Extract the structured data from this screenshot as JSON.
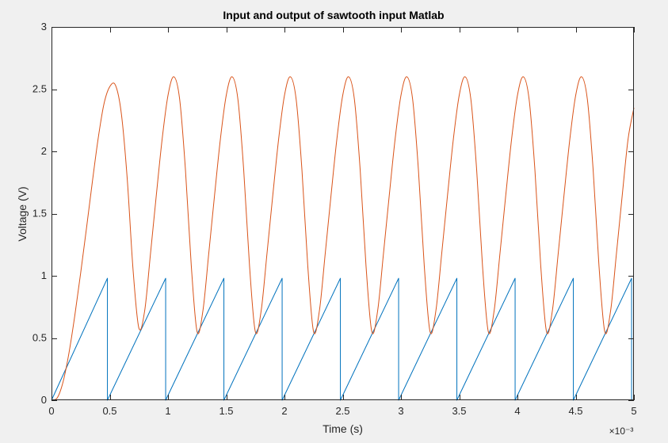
{
  "figure": {
    "background": "#f0f0f0",
    "axes_background": "#ffffff"
  },
  "chart_data": {
    "type": "line",
    "title": "Input and output of sawtooth input Matlab",
    "xlabel": "Time (s)",
    "ylabel": "Voltage (V)",
    "x_exponent_label": "×10⁻³",
    "x_unit_scale": 0.001,
    "xlim": [
      0,
      0.005
    ],
    "ylim": [
      0,
      3
    ],
    "box": true,
    "grid": false,
    "xticks": [
      0,
      0.5,
      1,
      1.5,
      2,
      2.5,
      3,
      3.5,
      4,
      4.5,
      5
    ],
    "xtick_labels": [
      "0",
      "0.5",
      "1",
      "1.5",
      "2",
      "2.5",
      "3",
      "3.5",
      "4",
      "4.5",
      "5"
    ],
    "yticks": [
      0,
      0.5,
      1,
      1.5,
      2,
      2.5,
      3
    ],
    "ytick_labels": [
      "0",
      "0.5",
      "1",
      "1.5",
      "2",
      "2.5",
      "3"
    ],
    "series": [
      {
        "color": "#0072BD",
        "x": [
          0,
          0.00048,
          0.00048,
          0.00098,
          0.00098,
          0.00148,
          0.00148,
          0.00198,
          0.00198,
          0.00248,
          0.00248,
          0.00298,
          0.00298,
          0.00348,
          0.00348,
          0.00398,
          0.00398,
          0.00448,
          0.00448,
          0.00498,
          0.00498
        ],
        "y": [
          0,
          0.98,
          0,
          0.98,
          0,
          0.98,
          0,
          0.98,
          0,
          0.98,
          0,
          0.98,
          0,
          0.98,
          0,
          0.98,
          0,
          0.98,
          0,
          0.98,
          0
        ]
      },
      {
        "color": "#D95319",
        "x": [
          0,
          5e-05,
          0.0001,
          0.00015,
          0.0002,
          0.00025,
          0.0003,
          0.00035,
          0.0004,
          0.00045,
          0.0005,
          0.00055,
          0.0006,
          0.00065,
          0.0007,
          0.00075,
          0.0008,
          0.00085,
          0.0009,
          0.00095,
          0.001,
          0.00105,
          0.0011,
          0.00115,
          0.0012,
          0.00125,
          0.0013,
          0.00135,
          0.0014,
          0.00145,
          0.0015,
          0.00155,
          0.0016,
          0.00165,
          0.0017,
          0.00175,
          0.0018,
          0.00185,
          0.0019,
          0.00195,
          0.002,
          0.00205,
          0.0021,
          0.00215,
          0.0022,
          0.00225,
          0.0023,
          0.00235,
          0.0024,
          0.00245,
          0.0025,
          0.00255,
          0.0026,
          0.00265,
          0.0027,
          0.00275,
          0.0028,
          0.00285,
          0.0029,
          0.00295,
          0.003,
          0.00305,
          0.0031,
          0.00315,
          0.0032,
          0.00325,
          0.0033,
          0.00335,
          0.0034,
          0.00345,
          0.0035,
          0.00355,
          0.0036,
          0.00365,
          0.0037,
          0.00375,
          0.0038,
          0.00385,
          0.0039,
          0.00395,
          0.004,
          0.00405,
          0.0041,
          0.00415,
          0.0042,
          0.00425,
          0.0043,
          0.00435,
          0.0044,
          0.00445,
          0.0045,
          0.00455,
          0.0046,
          0.00465,
          0.0047,
          0.00475,
          0.0048,
          0.00485,
          0.0049,
          0.00495,
          0.005
        ],
        "y": [
          0,
          0.02,
          0.15,
          0.38,
          0.68,
          1.02,
          1.38,
          1.75,
          2.1,
          2.38,
          2.52,
          2.53,
          2.3,
          1.78,
          1.05,
          0.58,
          0.72,
          1.18,
          1.65,
          2.1,
          2.45,
          2.6,
          2.42,
          1.85,
          1.08,
          0.55,
          0.72,
          1.18,
          1.65,
          2.1,
          2.45,
          2.6,
          2.42,
          1.85,
          1.08,
          0.55,
          0.72,
          1.18,
          1.65,
          2.1,
          2.45,
          2.6,
          2.42,
          1.85,
          1.08,
          0.55,
          0.72,
          1.18,
          1.65,
          2.1,
          2.45,
          2.6,
          2.42,
          1.85,
          1.08,
          0.55,
          0.72,
          1.18,
          1.65,
          2.1,
          2.45,
          2.6,
          2.42,
          1.85,
          1.08,
          0.55,
          0.72,
          1.18,
          1.65,
          2.1,
          2.45,
          2.6,
          2.42,
          1.85,
          1.08,
          0.55,
          0.72,
          1.18,
          1.65,
          2.1,
          2.45,
          2.6,
          2.42,
          1.85,
          1.08,
          0.55,
          0.72,
          1.18,
          1.65,
          2.1,
          2.45,
          2.6,
          2.42,
          1.85,
          1.08,
          0.55,
          0.72,
          1.18,
          1.65,
          2.1,
          2.35
        ]
      }
    ]
  }
}
